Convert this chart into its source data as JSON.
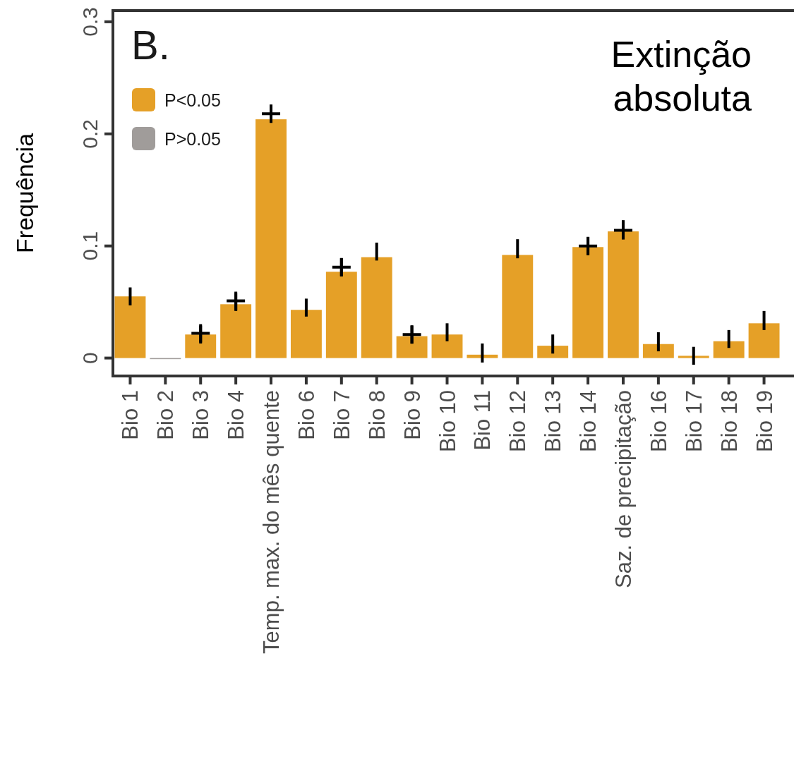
{
  "chart_data": {
    "type": "bar",
    "title": "Extinção absoluta",
    "ylabel": "Frequência",
    "annotations": [
      "B."
    ],
    "categories": [
      "Bio 1",
      "Bio 2",
      "Bio 3",
      "Bio 4",
      "Temp. max. do mês quente",
      "Bio 6",
      "Bio 7",
      "Bio 8",
      "Bio 9",
      "Bio 10",
      "Bio 11",
      "Bio 12",
      "Bio 13",
      "Bio 14",
      "Saz. de precipitação",
      "Bio 16",
      "Bio 17",
      "Bio 18",
      "Bio 19"
    ],
    "series": [
      {
        "name": "P<0.05",
        "color": "#e5a027",
        "values": [
          0.055,
          null,
          0.021,
          0.048,
          0.213,
          0.043,
          0.077,
          0.09,
          0.0195,
          0.021,
          0.003,
          0.092,
          0.011,
          0.099,
          0.113,
          0.0125,
          0.002,
          0.015,
          0.031
        ],
        "errors": [
          [
            0.047,
            0.063
          ],
          null,
          [
            0.013,
            0.029
          ],
          [
            0.042,
            0.058
          ],
          [
            0.211,
            0.226
          ],
          [
            0.037,
            0.053
          ],
          [
            0.073,
            0.089
          ],
          [
            0.087,
            0.103
          ],
          [
            0.013,
            0.029
          ],
          [
            0.015,
            0.031
          ],
          [
            -0.004,
            0.013
          ],
          [
            0.089,
            0.106
          ],
          [
            0.004,
            0.021
          ],
          [
            0.092,
            0.108
          ],
          [
            0.106,
            0.123
          ],
          [
            0.006,
            0.023
          ],
          [
            -0.006,
            0.01
          ],
          [
            0.009,
            0.025
          ],
          [
            0.025,
            0.042
          ]
        ]
      },
      {
        "name": "P>0.05",
        "color": "#a09c9a",
        "values": [
          null,
          -0.001,
          null,
          null,
          null,
          null,
          null,
          null,
          null,
          null,
          null,
          null,
          null,
          null,
          null,
          null,
          null,
          null,
          null
        ]
      },
      {
        "type": "scatter",
        "color": "#000000",
        "marker": "cross",
        "x": [
          "Bio 3",
          "Bio 4",
          "Temp. max. do mês quente",
          "Bio 7",
          "Bio 9",
          "Bio 14",
          "Saz. de precipitação"
        ],
        "values": [
          0.022,
          0.051,
          0.218,
          0.081,
          0.021,
          0.1,
          0.114
        ]
      }
    ],
    "ylim": [
      -0.016,
      0.31
    ],
    "yticks": [
      {
        "value": 0,
        "label": "0"
      },
      0.1,
      0.2,
      0.3
    ],
    "grid": false,
    "legend": "top left"
  }
}
